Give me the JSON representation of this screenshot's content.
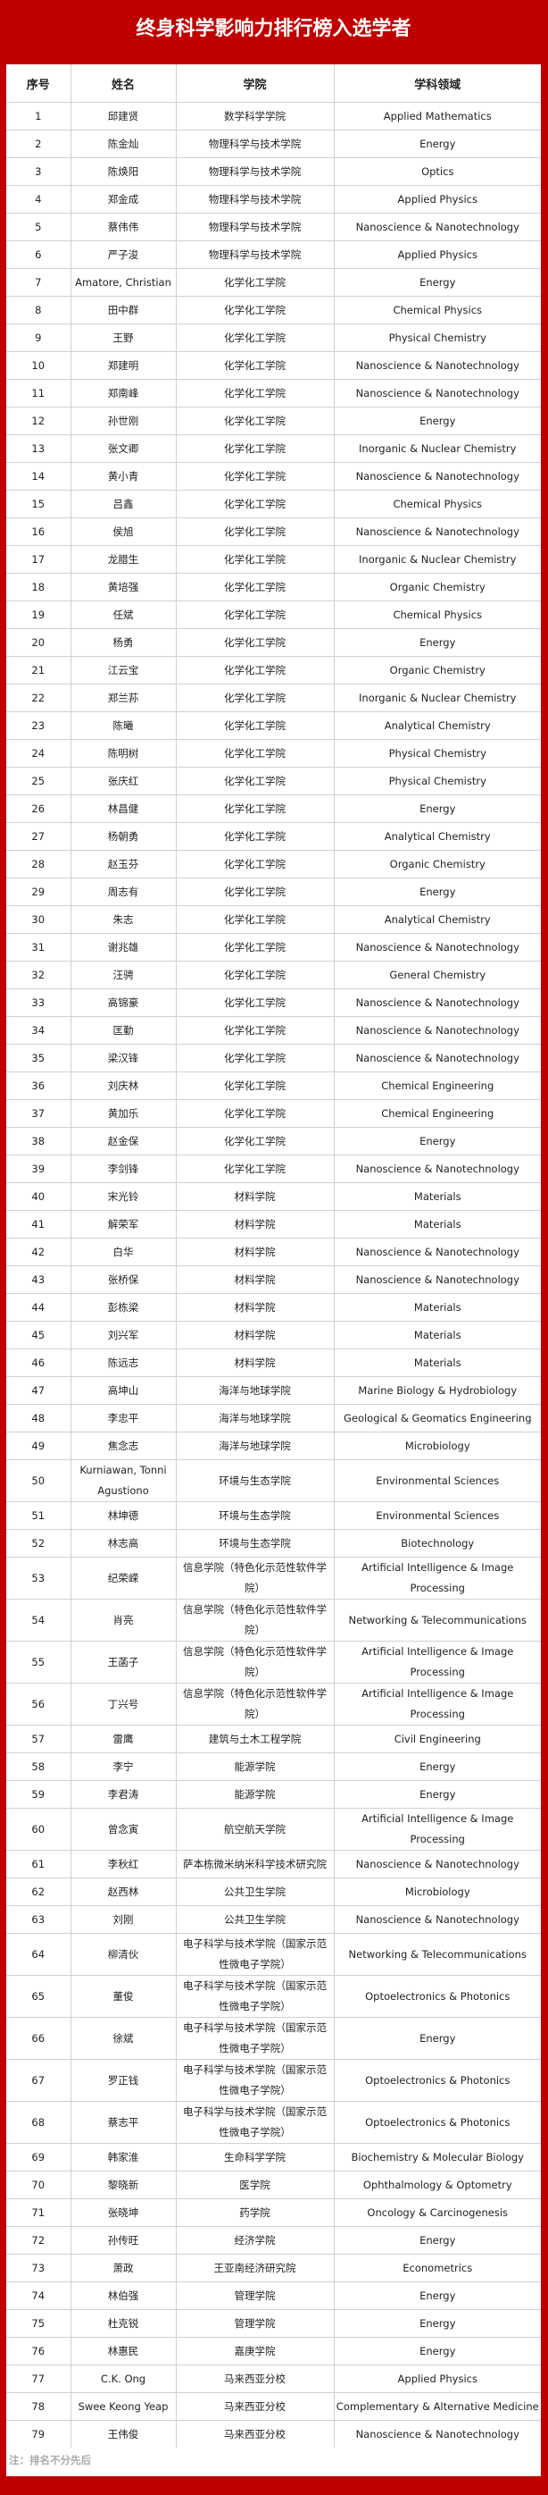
{
  "title": "终身科学影响力排行榜入选学者",
  "colors": {
    "accent": "#c00000",
    "grid": "#d0d0d0",
    "note": "#aaaaaa"
  },
  "table": {
    "headers": [
      "序号",
      "姓名",
      "学院",
      "学科领域"
    ],
    "rows": [
      [
        "1",
        "邱建贤",
        "数学科学学院",
        "Applied Mathematics"
      ],
      [
        "2",
        "陈金灿",
        "物理科学与技术学院",
        "Energy"
      ],
      [
        "3",
        "陈焕阳",
        "物理科学与技术学院",
        "Optics"
      ],
      [
        "4",
        "郑金成",
        "物理科学与技术学院",
        "Applied Physics"
      ],
      [
        "5",
        "蔡伟伟",
        "物理科学与技术学院",
        "Nanoscience & Nanotechnology"
      ],
      [
        "6",
        "严子浚",
        "物理科学与技术学院",
        "Applied Physics"
      ],
      [
        "7",
        "Amatore, Christian",
        "化学化工学院",
        "Energy"
      ],
      [
        "8",
        "田中群",
        "化学化工学院",
        "Chemical Physics"
      ],
      [
        "9",
        "王野",
        "化学化工学院",
        "Physical Chemistry"
      ],
      [
        "10",
        "郑建明",
        "化学化工学院",
        "Nanoscience & Nanotechnology"
      ],
      [
        "11",
        "郑南峰",
        "化学化工学院",
        "Nanoscience & Nanotechnology"
      ],
      [
        "12",
        "孙世刚",
        "化学化工学院",
        "Energy"
      ],
      [
        "13",
        "张文卿",
        "化学化工学院",
        "Inorganic & Nuclear Chemistry"
      ],
      [
        "14",
        "黄小青",
        "化学化工学院",
        "Nanoscience & Nanotechnology"
      ],
      [
        "15",
        "吕鑫",
        "化学化工学院",
        "Chemical Physics"
      ],
      [
        "16",
        "侯旭",
        "化学化工学院",
        "Nanoscience & Nanotechnology"
      ],
      [
        "17",
        "龙腊生",
        "化学化工学院",
        "Inorganic & Nuclear Chemistry"
      ],
      [
        "18",
        "黄培强",
        "化学化工学院",
        "Organic Chemistry"
      ],
      [
        "19",
        "任斌",
        "化学化工学院",
        "Chemical Physics"
      ],
      [
        "20",
        "杨勇",
        "化学化工学院",
        "Energy"
      ],
      [
        "21",
        "江云宝",
        "化学化工学院",
        "Organic Chemistry"
      ],
      [
        "22",
        "郑兰荪",
        "化学化工学院",
        "Inorganic & Nuclear Chemistry"
      ],
      [
        "23",
        "陈曦",
        "化学化工学院",
        "Analytical Chemistry"
      ],
      [
        "24",
        "陈明树",
        "化学化工学院",
        "Physical Chemistry"
      ],
      [
        "25",
        "张庆红",
        "化学化工学院",
        "Physical Chemistry"
      ],
      [
        "26",
        "林昌健",
        "化学化工学院",
        "Energy"
      ],
      [
        "27",
        "杨朝勇",
        "化学化工学院",
        "Analytical Chemistry"
      ],
      [
        "28",
        "赵玉芬",
        "化学化工学院",
        "Organic Chemistry"
      ],
      [
        "29",
        "周志有",
        "化学化工学院",
        "Energy"
      ],
      [
        "30",
        "朱志",
        "化学化工学院",
        "Analytical Chemistry"
      ],
      [
        "31",
        "谢兆雄",
        "化学化工学院",
        "Nanoscience & Nanotechnology"
      ],
      [
        "32",
        "汪骋",
        "化学化工学院",
        "General Chemistry"
      ],
      [
        "33",
        "高锦豪",
        "化学化工学院",
        "Nanoscience & Nanotechnology"
      ],
      [
        "34",
        "匡勤",
        "化学化工学院",
        "Nanoscience & Nanotechnology"
      ],
      [
        "35",
        "梁汉锋",
        "化学化工学院",
        "Nanoscience & Nanotechnology"
      ],
      [
        "36",
        "刘庆林",
        "化学化工学院",
        "Chemical Engineering"
      ],
      [
        "37",
        "黄加乐",
        "化学化工学院",
        "Chemical Engineering"
      ],
      [
        "38",
        "赵金保",
        "化学化工学院",
        "Energy"
      ],
      [
        "39",
        "李剑锋",
        "化学化工学院",
        "Nanoscience & Nanotechnology"
      ],
      [
        "40",
        "宋光铃",
        "材料学院",
        "Materials"
      ],
      [
        "41",
        "解荣军",
        "材料学院",
        "Materials"
      ],
      [
        "42",
        "白华",
        "材料学院",
        "Nanoscience & Nanotechnology"
      ],
      [
        "43",
        "张桥保",
        "材料学院",
        "Nanoscience & Nanotechnology"
      ],
      [
        "44",
        "彭栋梁",
        "材料学院",
        "Materials"
      ],
      [
        "45",
        "刘兴军",
        "材料学院",
        "Materials"
      ],
      [
        "46",
        "陈远志",
        "材料学院",
        "Materials"
      ],
      [
        "47",
        "高坤山",
        "海洋与地球学院",
        "Marine Biology & Hydrobiology"
      ],
      [
        "48",
        "李忠平",
        "海洋与地球学院",
        "Geological & Geomatics Engineering"
      ],
      [
        "49",
        "焦念志",
        "海洋与地球学院",
        "Microbiology"
      ],
      [
        "50",
        "Kurniawan, Tonni Agustiono",
        "环境与生态学院",
        "Environmental Sciences"
      ],
      [
        "51",
        "林坤德",
        "环境与生态学院",
        "Environmental Sciences"
      ],
      [
        "52",
        "林志高",
        "环境与生态学院",
        "Biotechnology"
      ],
      [
        "53",
        "纪荣嵘",
        "信息学院（特色化示范性软件学院）",
        "Artificial Intelligence & Image Processing"
      ],
      [
        "54",
        "肖亮",
        "信息学院（特色化示范性软件学院）",
        "Networking & Telecommunications"
      ],
      [
        "55",
        "王菡子",
        "信息学院（特色化示范性软件学院）",
        "Artificial Intelligence & Image Processing"
      ],
      [
        "56",
        "丁兴号",
        "信息学院（特色化示范性软件学院）",
        "Artificial Intelligence & Image Processing"
      ],
      [
        "57",
        "雷鹰",
        "建筑与土木工程学院",
        "Civil Engineering"
      ],
      [
        "58",
        "李宁",
        "能源学院",
        "Energy"
      ],
      [
        "59",
        "李君涛",
        "能源学院",
        "Energy"
      ],
      [
        "60",
        "曾念寅",
        "航空航天学院",
        "Artificial Intelligence & Image Processing"
      ],
      [
        "61",
        "李秋红",
        "萨本栋微米纳米科学技术研究院",
        "Nanoscience & Nanotechnology"
      ],
      [
        "62",
        "赵西林",
        "公共卫生学院",
        "Microbiology"
      ],
      [
        "63",
        "刘刚",
        "公共卫生学院",
        "Nanoscience & Nanotechnology"
      ],
      [
        "64",
        "柳清伙",
        "电子科学与技术学院（国家示范性微电子学院）",
        "Networking & Telecommunications"
      ],
      [
        "65",
        "董俊",
        "电子科学与技术学院（国家示范性微电子学院）",
        "Optoelectronics & Photonics"
      ],
      [
        "66",
        "徐斌",
        "电子科学与技术学院（国家示范性微电子学院）",
        "Energy"
      ],
      [
        "67",
        "罗正钱",
        "电子科学与技术学院（国家示范性微电子学院）",
        "Optoelectronics & Photonics"
      ],
      [
        "68",
        "蔡志平",
        "电子科学与技术学院（国家示范性微电子学院）",
        "Optoelectronics & Photonics"
      ],
      [
        "69",
        "韩家淮",
        "生命科学学院",
        "Biochemistry & Molecular Biology"
      ],
      [
        "70",
        "黎晓新",
        "医学院",
        "Ophthalmology & Optometry"
      ],
      [
        "71",
        "张晓坤",
        "药学院",
        "Oncology & Carcinogenesis"
      ],
      [
        "72",
        "孙传旺",
        "经济学院",
        "Energy"
      ],
      [
        "73",
        "萧政",
        "王亚南经济研究院",
        "Econometrics"
      ],
      [
        "74",
        "林伯强",
        "管理学院",
        "Energy"
      ],
      [
        "75",
        "杜克锐",
        "管理学院",
        "Energy"
      ],
      [
        "76",
        "林惠民",
        "嘉庚学院",
        "Energy"
      ],
      [
        "77",
        "C.K. Ong",
        "马来西亚分校",
        "Applied Physics"
      ],
      [
        "78",
        "Swee Keong Yeap",
        "马来西亚分校",
        "Complementary & Alternative Medicine"
      ],
      [
        "79",
        "王伟俊",
        "马来西亚分校",
        "Nanoscience & Nanotechnology"
      ]
    ]
  },
  "note": "注：排名不分先后"
}
